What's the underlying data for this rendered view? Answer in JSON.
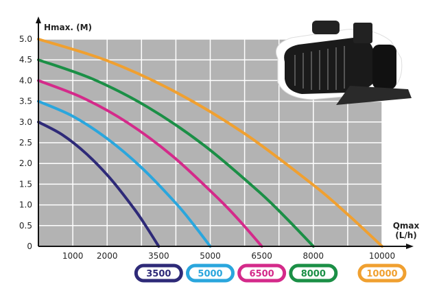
{
  "chart_data": {
    "type": "line",
    "ylabel": "Hmax. (M)",
    "xlabel_line1": "Qmax",
    "xlabel_line2": "(L/h)",
    "xlim": [
      0,
      10000
    ],
    "ylim": [
      0,
      5.0
    ],
    "grid": true,
    "background": "#b3b3b3",
    "x_ticks": [
      "1000",
      "2000",
      "3500",
      "5000",
      "6500",
      "8000",
      "10000"
    ],
    "x_tick_values": [
      1000,
      2000,
      3500,
      5000,
      6500,
      8000,
      10000
    ],
    "y_ticks": [
      "0",
      "0.5",
      "1.0",
      "1.5",
      "2.0",
      "2.5",
      "3.0",
      "3.5",
      "4.0",
      "4.5",
      "5.0"
    ],
    "y_tick_values": [
      0,
      0.5,
      1,
      1.5,
      2,
      2.5,
      3,
      3.5,
      4,
      4.5,
      5
    ],
    "legend_placement": "bottom",
    "series": [
      {
        "name": "3500",
        "color": "#2e2a78",
        "x": [
          0,
          700,
          1400,
          2100,
          2800,
          3150,
          3500
        ],
        "y": [
          3.0,
          2.69,
          2.23,
          1.63,
          0.89,
          0.46,
          0
        ]
      },
      {
        "name": "5000",
        "color": "#2aa6dd",
        "x": [
          0,
          1000,
          2000,
          3000,
          4000,
          4500,
          5000
        ],
        "y": [
          3.5,
          3.14,
          2.6,
          1.9,
          1.04,
          0.54,
          0
        ]
      },
      {
        "name": "6500",
        "color": "#d42a8a",
        "x": [
          0,
          1300,
          2600,
          3900,
          5200,
          5850,
          6500
        ],
        "y": [
          4.0,
          3.58,
          2.98,
          2.18,
          1.18,
          0.62,
          0
        ]
      },
      {
        "name": "8000",
        "color": "#1b8f46",
        "x": [
          0,
          1600,
          3200,
          4800,
          6400,
          7200,
          8000
        ],
        "y": [
          4.5,
          4.03,
          3.35,
          2.45,
          1.33,
          0.69,
          0
        ]
      },
      {
        "name": "10000",
        "color": "#f0a030",
        "x": [
          0,
          2000,
          4000,
          6000,
          8000,
          9000,
          10000
        ],
        "y": [
          5.0,
          4.48,
          3.72,
          2.72,
          1.48,
          0.77,
          0
        ]
      }
    ]
  },
  "product_image": "pond-pump-icon"
}
